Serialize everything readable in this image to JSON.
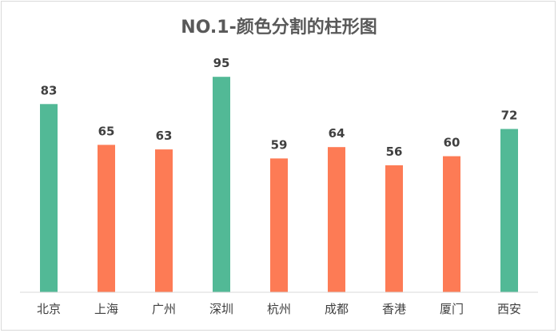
{
  "chart_data": {
    "type": "bar",
    "title": "NO.1-颜色分割的柱形图",
    "categories": [
      "北京",
      "上海",
      "广州",
      "深圳",
      "杭州",
      "成都",
      "香港",
      "厦门",
      "西安"
    ],
    "values": [
      83,
      65,
      63,
      95,
      59,
      64,
      56,
      60,
      72
    ],
    "colors": [
      "#52b996",
      "#fd7b55",
      "#fd7b55",
      "#52b996",
      "#fd7b55",
      "#fd7b55",
      "#fd7b55",
      "#fd7b55",
      "#52b996"
    ],
    "ylim": [
      0,
      100
    ],
    "grid": false,
    "legend": "none",
    "xlabel": "",
    "ylabel": ""
  }
}
